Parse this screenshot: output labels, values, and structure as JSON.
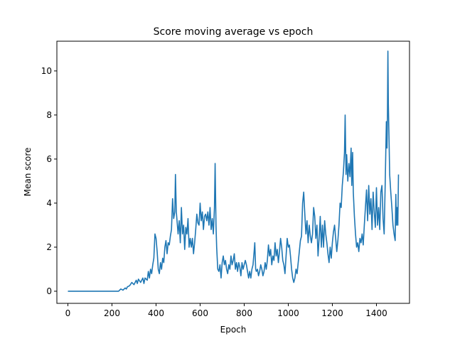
{
  "chart_data": {
    "type": "line",
    "title": "Score moving average vs epoch",
    "xlabel": "Epoch",
    "ylabel": "Mean score",
    "xlim": [
      -50,
      1550
    ],
    "ylim": [
      -0.55,
      11.35
    ],
    "xticks": [
      0,
      200,
      400,
      600,
      800,
      1000,
      1200,
      1400
    ],
    "yticks": [
      0,
      2,
      4,
      6,
      8,
      10
    ],
    "grid": false,
    "line_color": "#1f77b4",
    "series": [
      {
        "points": [
          [
            0,
            0
          ],
          [
            100,
            0
          ],
          [
            200,
            0
          ],
          [
            230,
            0
          ],
          [
            240,
            0.1
          ],
          [
            250,
            0.05
          ],
          [
            260,
            0.15
          ],
          [
            265,
            0.1
          ],
          [
            270,
            0.2
          ],
          [
            280,
            0.25
          ],
          [
            290,
            0.4
          ],
          [
            300,
            0.3
          ],
          [
            310,
            0.5
          ],
          [
            315,
            0.35
          ],
          [
            320,
            0.55
          ],
          [
            330,
            0.4
          ],
          [
            340,
            0.6
          ],
          [
            345,
            0.35
          ],
          [
            350,
            0.6
          ],
          [
            360,
            0.5
          ],
          [
            365,
            0.9
          ],
          [
            370,
            0.6
          ],
          [
            375,
            1.0
          ],
          [
            380,
            0.8
          ],
          [
            385,
            1.2
          ],
          [
            390,
            1.5
          ],
          [
            395,
            2.6
          ],
          [
            400,
            2.4
          ],
          [
            405,
            1.8
          ],
          [
            410,
            1.0
          ],
          [
            415,
            0.8
          ],
          [
            420,
            1.3
          ],
          [
            425,
            1.0
          ],
          [
            430,
            1.5
          ],
          [
            435,
            1.3
          ],
          [
            440,
            2.0
          ],
          [
            445,
            2.3
          ],
          [
            450,
            1.7
          ],
          [
            455,
            2.2
          ],
          [
            460,
            2.1
          ],
          [
            465,
            2.5
          ],
          [
            470,
            2.8
          ],
          [
            475,
            4.2
          ],
          [
            480,
            3.3
          ],
          [
            485,
            3.6
          ],
          [
            488,
            5.3
          ],
          [
            492,
            3.6
          ],
          [
            500,
            2.6
          ],
          [
            505,
            3.2
          ],
          [
            510,
            2.2
          ],
          [
            515,
            3.8
          ],
          [
            520,
            2.6
          ],
          [
            525,
            3.0
          ],
          [
            530,
            1.9
          ],
          [
            535,
            2.9
          ],
          [
            540,
            2.6
          ],
          [
            545,
            3.3
          ],
          [
            550,
            2.0
          ],
          [
            555,
            2.4
          ],
          [
            560,
            2.0
          ],
          [
            565,
            2.4
          ],
          [
            570,
            1.7
          ],
          [
            575,
            2.2
          ],
          [
            580,
            2.8
          ],
          [
            585,
            3.5
          ],
          [
            590,
            3.1
          ],
          [
            595,
            3.0
          ],
          [
            600,
            4.0
          ],
          [
            605,
            3.2
          ],
          [
            610,
            3.6
          ],
          [
            615,
            2.8
          ],
          [
            620,
            3.4
          ],
          [
            625,
            3.5
          ],
          [
            630,
            3.2
          ],
          [
            635,
            3.6
          ],
          [
            640,
            3.0
          ],
          [
            645,
            3.8
          ],
          [
            650,
            2.8
          ],
          [
            655,
            3.3
          ],
          [
            660,
            2.6
          ],
          [
            665,
            3.8
          ],
          [
            668,
            5.8
          ],
          [
            672,
            3.0
          ],
          [
            675,
            2.0
          ],
          [
            680,
            1.0
          ],
          [
            685,
            0.9
          ],
          [
            690,
            1.2
          ],
          [
            695,
            0.6
          ],
          [
            700,
            1.3
          ],
          [
            705,
            1.6
          ],
          [
            710,
            1.2
          ],
          [
            715,
            1.4
          ],
          [
            720,
            1.0
          ],
          [
            725,
            0.8
          ],
          [
            730,
            1.2
          ],
          [
            735,
            1.0
          ],
          [
            740,
            1.6
          ],
          [
            745,
            1.2
          ],
          [
            750,
            1.4
          ],
          [
            755,
            1.7
          ],
          [
            760,
            1.0
          ],
          [
            765,
            1.3
          ],
          [
            770,
            0.9
          ],
          [
            775,
            1.3
          ],
          [
            780,
            1.1
          ],
          [
            785,
            0.7
          ],
          [
            790,
            1.3
          ],
          [
            795,
            1.0
          ],
          [
            800,
            1.2
          ],
          [
            805,
            1.4
          ],
          [
            810,
            1.2
          ],
          [
            815,
            0.9
          ],
          [
            820,
            0.6
          ],
          [
            825,
            0.9
          ],
          [
            830,
            0.6
          ],
          [
            835,
            1.0
          ],
          [
            840,
            1.2
          ],
          [
            845,
            1.8
          ],
          [
            848,
            2.2
          ],
          [
            852,
            1.0
          ],
          [
            855,
            0.9
          ],
          [
            860,
            1.0
          ],
          [
            865,
            0.7
          ],
          [
            870,
            0.9
          ],
          [
            875,
            1.2
          ],
          [
            880,
            1.0
          ],
          [
            885,
            0.7
          ],
          [
            890,
            0.9
          ],
          [
            895,
            1.3
          ],
          [
            900,
            1.0
          ],
          [
            905,
            1.4
          ],
          [
            910,
            2.1
          ],
          [
            915,
            1.6
          ],
          [
            920,
            1.9
          ],
          [
            925,
            1.2
          ],
          [
            930,
            1.6
          ],
          [
            935,
            1.4
          ],
          [
            940,
            2.2
          ],
          [
            945,
            1.6
          ],
          [
            950,
            1.9
          ],
          [
            955,
            1.3
          ],
          [
            960,
            1.8
          ],
          [
            965,
            2.4
          ],
          [
            970,
            2.0
          ],
          [
            975,
            1.4
          ],
          [
            980,
            1.2
          ],
          [
            985,
            0.8
          ],
          [
            990,
            1.6
          ],
          [
            995,
            2.4
          ],
          [
            1000,
            2.0
          ],
          [
            1005,
            2.1
          ],
          [
            1010,
            1.6
          ],
          [
            1015,
            1.0
          ],
          [
            1020,
            0.6
          ],
          [
            1025,
            0.4
          ],
          [
            1030,
            0.6
          ],
          [
            1035,
            1.0
          ],
          [
            1040,
            0.8
          ],
          [
            1045,
            1.3
          ],
          [
            1050,
            1.8
          ],
          [
            1055,
            2.3
          ],
          [
            1060,
            2.5
          ],
          [
            1065,
            4.0
          ],
          [
            1070,
            4.5
          ],
          [
            1075,
            3.5
          ],
          [
            1080,
            2.6
          ],
          [
            1085,
            3.2
          ],
          [
            1090,
            2.2
          ],
          [
            1095,
            3.0
          ],
          [
            1100,
            2.5
          ],
          [
            1105,
            2.2
          ],
          [
            1110,
            2.6
          ],
          [
            1115,
            3.8
          ],
          [
            1120,
            3.4
          ],
          [
            1125,
            2.4
          ],
          [
            1130,
            3.0
          ],
          [
            1135,
            1.6
          ],
          [
            1140,
            2.4
          ],
          [
            1145,
            3.4
          ],
          [
            1150,
            2.0
          ],
          [
            1155,
            3.0
          ],
          [
            1160,
            2.0
          ],
          [
            1165,
            3.2
          ],
          [
            1170,
            2.6
          ],
          [
            1175,
            2.2
          ],
          [
            1180,
            1.7
          ],
          [
            1185,
            1.3
          ],
          [
            1190,
            2.0
          ],
          [
            1195,
            1.5
          ],
          [
            1200,
            2.2
          ],
          [
            1205,
            2.7
          ],
          [
            1210,
            3.0
          ],
          [
            1215,
            2.4
          ],
          [
            1220,
            1.8
          ],
          [
            1225,
            2.3
          ],
          [
            1230,
            3.0
          ],
          [
            1235,
            4.0
          ],
          [
            1240,
            3.8
          ],
          [
            1245,
            4.8
          ],
          [
            1250,
            5.4
          ],
          [
            1255,
            6.3
          ],
          [
            1258,
            8.0
          ],
          [
            1262,
            5.3
          ],
          [
            1265,
            6.2
          ],
          [
            1270,
            5.0
          ],
          [
            1275,
            5.8
          ],
          [
            1280,
            5.2
          ],
          [
            1285,
            6.5
          ],
          [
            1288,
            4.8
          ],
          [
            1292,
            6.3
          ],
          [
            1295,
            4.5
          ],
          [
            1300,
            3.4
          ],
          [
            1305,
            2.6
          ],
          [
            1310,
            2.0
          ],
          [
            1315,
            2.2
          ],
          [
            1320,
            1.8
          ],
          [
            1325,
            2.4
          ],
          [
            1330,
            2.2
          ],
          [
            1335,
            2.6
          ],
          [
            1340,
            2.1
          ],
          [
            1345,
            3.0
          ],
          [
            1350,
            3.8
          ],
          [
            1355,
            4.6
          ],
          [
            1360,
            3.2
          ],
          [
            1365,
            4.8
          ],
          [
            1370,
            3.5
          ],
          [
            1375,
            4.2
          ],
          [
            1380,
            2.8
          ],
          [
            1385,
            4.5
          ],
          [
            1390,
            3.6
          ],
          [
            1395,
            2.9
          ],
          [
            1400,
            4.7
          ],
          [
            1405,
            3.0
          ],
          [
            1410,
            3.8
          ],
          [
            1415,
            2.8
          ],
          [
            1420,
            4.5
          ],
          [
            1425,
            4.8
          ],
          [
            1430,
            3.3
          ],
          [
            1435,
            2.6
          ],
          [
            1440,
            5.0
          ],
          [
            1445,
            7.7
          ],
          [
            1448,
            6.5
          ],
          [
            1450,
            8.0
          ],
          [
            1452,
            10.9
          ],
          [
            1454,
            8.5
          ],
          [
            1457,
            7.0
          ],
          [
            1460,
            5.3
          ],
          [
            1465,
            4.5
          ],
          [
            1470,
            3.8
          ],
          [
            1475,
            3.0
          ],
          [
            1480,
            2.6
          ],
          [
            1485,
            2.3
          ],
          [
            1488,
            4.4
          ],
          [
            1491,
            3.0
          ],
          [
            1494,
            3.8
          ],
          [
            1497,
            3.0
          ],
          [
            1500,
            5.3
          ]
        ]
      }
    ]
  }
}
